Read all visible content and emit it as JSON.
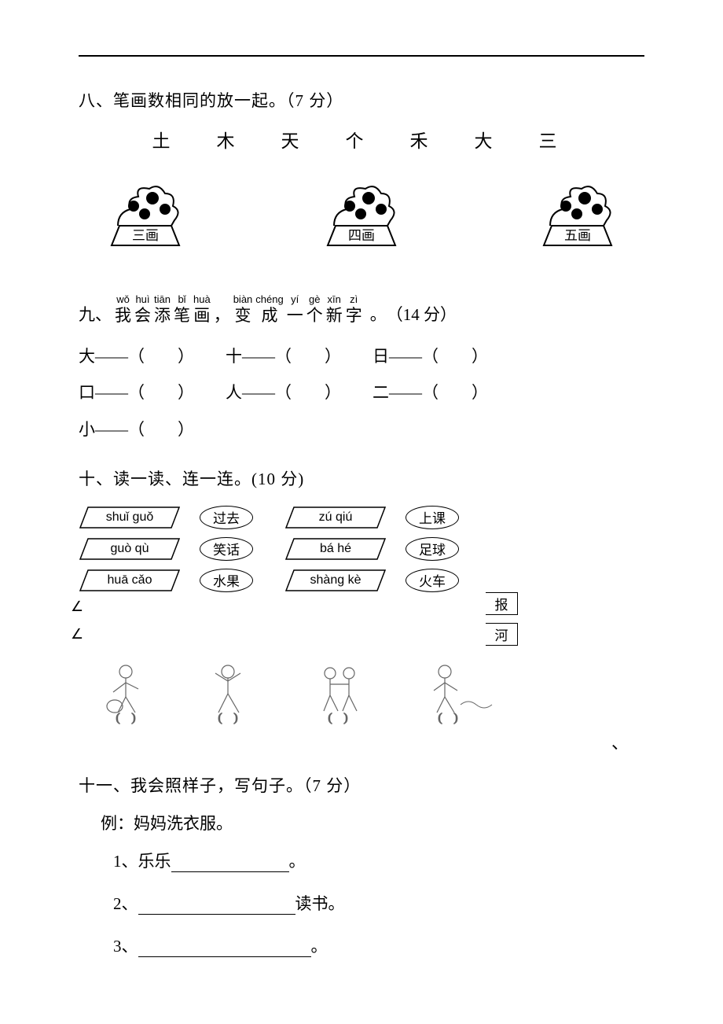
{
  "section8": {
    "title": "八、笔画数相同的放一起。（7 分）",
    "chars": "土　木　天　个　禾　大　三",
    "pots": [
      {
        "label": "三画"
      },
      {
        "label": "四画"
      },
      {
        "label": "五画"
      }
    ]
  },
  "section9": {
    "prefix": "九、",
    "ruby": [
      {
        "p": "wǒ",
        "h": "我"
      },
      {
        "p": "huì",
        "h": "会"
      },
      {
        "p": "tiān",
        "h": "添"
      },
      {
        "p": "bǐ",
        "h": "笔"
      },
      {
        "p": "huà",
        "h": "画"
      },
      {
        "p": "，",
        "h": "，"
      },
      {
        "p": "biàn",
        "h": "变"
      },
      {
        "p": "chéng",
        "h": "成"
      },
      {
        "p": "yí",
        "h": "一"
      },
      {
        "p": "gè",
        "h": "个"
      },
      {
        "p": "xīn",
        "h": "新"
      },
      {
        "p": "zì",
        "h": "字"
      }
    ],
    "tail": "。　（14 分）",
    "rows": [
      [
        "大——（　　）",
        "十——（　　）",
        "日——（　　）"
      ],
      [
        "口——（　　）",
        "人——（　　）",
        "二——（　　）"
      ],
      [
        "小——（　　）"
      ]
    ]
  },
  "section10": {
    "title": "十、读一读、连一连。(10 分)",
    "left_pinyin": [
      "shuǐ guǒ",
      "guò qù",
      "huā cǎo"
    ],
    "left_words": [
      "过去",
      "笑话",
      "水果"
    ],
    "right_pinyin": [
      "zú qiú",
      "bá hé",
      "shàng kè"
    ],
    "right_words": [
      "上课",
      "足球",
      "火车"
    ],
    "extra": [
      "报",
      "河"
    ]
  },
  "section11": {
    "title": "十一、我会照样子，写句子。（7 分）",
    "example_label": "例：",
    "example_text": "妈妈洗衣服。",
    "lines": [
      {
        "num": "1、",
        "before": "乐乐",
        "after": "。",
        "blank_width": 150
      },
      {
        "num": "2、",
        "before": "",
        "after": "读书。",
        "blank_width": 200
      },
      {
        "num": "3、",
        "before": "",
        "after": "。",
        "blank_width": 220
      }
    ]
  },
  "stray": "、"
}
